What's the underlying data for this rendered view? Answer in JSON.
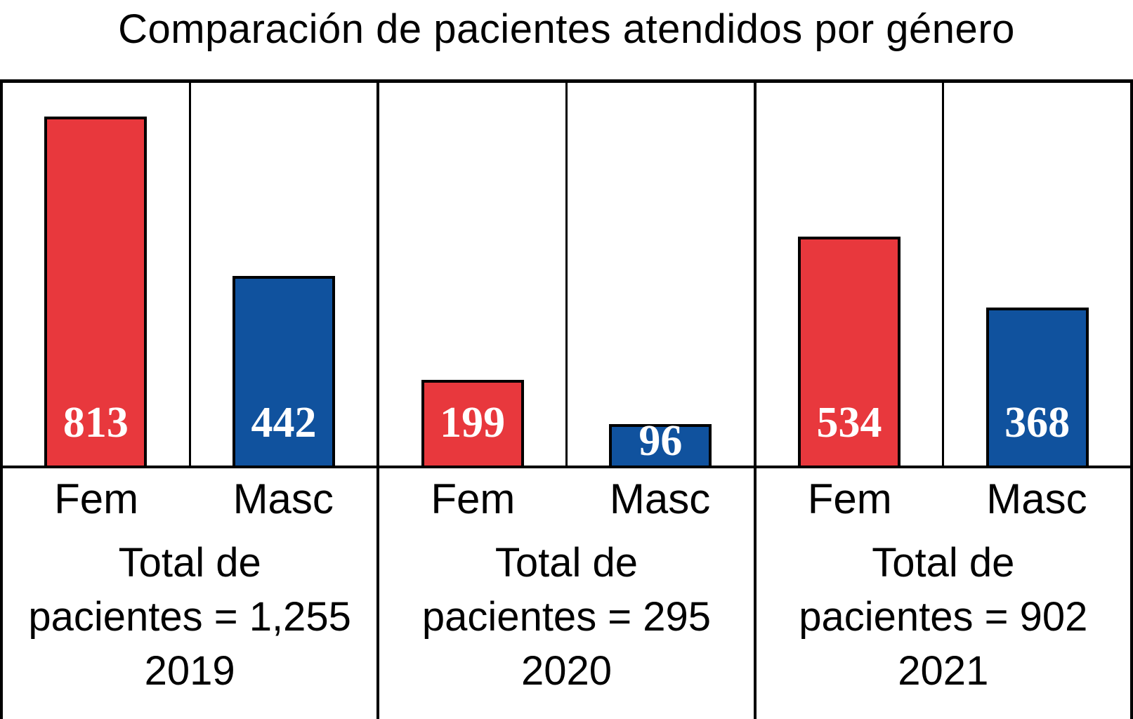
{
  "title": "Comparación de pacientes atendidos por género",
  "chart_data": {
    "type": "bar",
    "title": "Comparación de pacientes atendidos por género",
    "categories": [
      "2019",
      "2020",
      "2021"
    ],
    "series": [
      {
        "name": "Fem",
        "color": "#e8383d",
        "values": [
          813,
          199,
          534
        ]
      },
      {
        "name": "Masc",
        "color": "#10529e",
        "values": [
          442,
          96,
          368
        ]
      }
    ],
    "groups": [
      {
        "year": "2019",
        "bars": [
          {
            "gender": "Fem",
            "value": 813
          },
          {
            "gender": "Masc",
            "value": 442
          }
        ],
        "total_lines": [
          "Total de",
          "pacientes = 1,255",
          "2019"
        ]
      },
      {
        "year": "2020",
        "bars": [
          {
            "gender": "Fem",
            "value": 199
          },
          {
            "gender": "Masc",
            "value": 96
          }
        ],
        "total_lines": [
          "Total de",
          "pacientes = 295",
          "2020"
        ]
      },
      {
        "year": "2021",
        "bars": [
          {
            "gender": "Fem",
            "value": 534
          },
          {
            "gender": "Masc",
            "value": 368
          }
        ],
        "total_lines": [
          "Total de",
          "pacientes = 902",
          "2021"
        ]
      }
    ],
    "ylim": [
      0,
      895
    ],
    "grid": false,
    "legend": "none",
    "value_labels": "inside-bar-bottom"
  },
  "colors": {
    "female_bar": "#e8383d",
    "male_bar": "#10529e",
    "line": "#000000",
    "value_text": "#ffffff",
    "text": "#000000",
    "background": "#ffffff"
  }
}
